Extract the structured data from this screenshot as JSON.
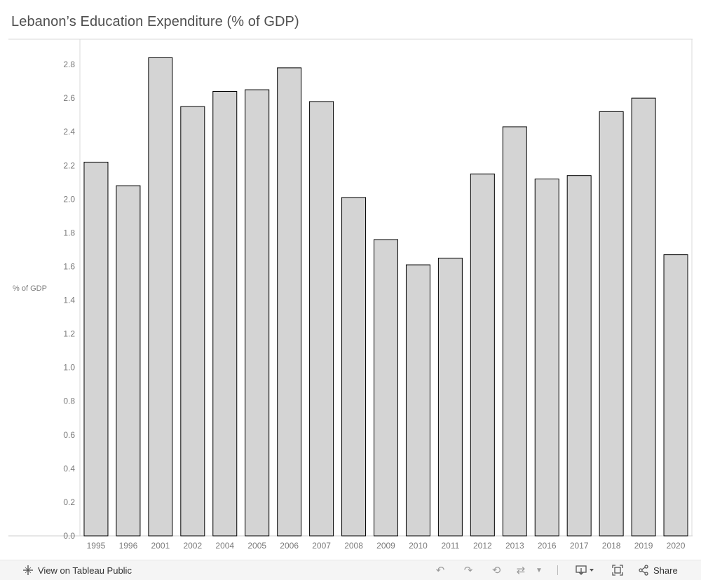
{
  "title": "Lebanon’s Education Expenditure (% of GDP)",
  "chart_data": {
    "type": "bar",
    "title": "Lebanon’s Education Expenditure (% of GDP)",
    "xlabel": "",
    "ylabel": "% of GDP",
    "categories": [
      "1995",
      "1996",
      "2001",
      "2002",
      "2004",
      "2005",
      "2006",
      "2007",
      "2008",
      "2009",
      "2010",
      "2011",
      "2012",
      "2013",
      "2016",
      "2017",
      "2018",
      "2019",
      "2020"
    ],
    "values": [
      2.22,
      2.08,
      2.84,
      2.55,
      2.64,
      2.65,
      2.78,
      2.58,
      2.01,
      1.76,
      1.61,
      1.65,
      2.15,
      2.43,
      2.12,
      2.14,
      2.52,
      2.6,
      1.67
    ],
    "ylim": [
      0,
      2.95
    ],
    "yticks": [
      "0.0",
      "0.2",
      "0.4",
      "0.6",
      "0.8",
      "1.0",
      "1.2",
      "1.4",
      "1.6",
      "1.8",
      "2.0",
      "2.2",
      "2.4",
      "2.6",
      "2.8"
    ],
    "grid": false,
    "bar_color": "#d4d4d4",
    "bar_stroke": "#000000"
  },
  "footer": {
    "view_label": "View on Tableau Public",
    "share_label": "Share"
  }
}
